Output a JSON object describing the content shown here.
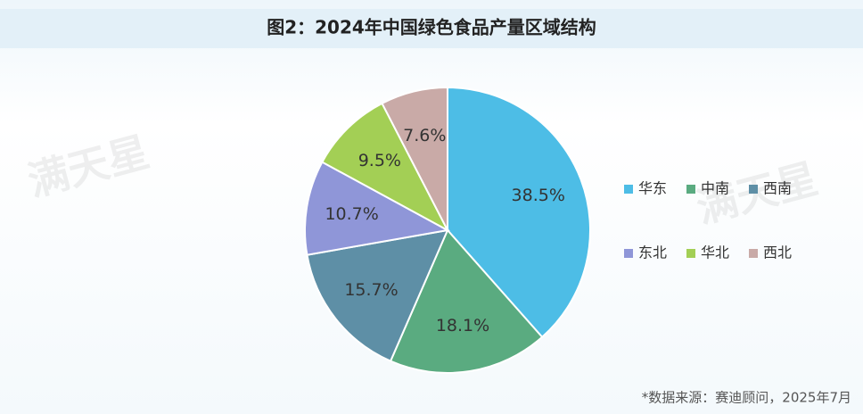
{
  "chart_data": {
    "type": "pie",
    "title": "图2：2024年中国绿色食品产量区域结构",
    "categories": [
      "华东",
      "中南",
      "西南",
      "东北",
      "华北",
      "西北"
    ],
    "values": [
      38.5,
      18.1,
      15.7,
      10.7,
      9.5,
      7.6
    ],
    "value_labels": [
      "38.5%",
      "18.1%",
      "15.7%",
      "10.7%",
      "9.5%",
      "7.6%"
    ],
    "colors": [
      "#4dbde6",
      "#5aab80",
      "#5e8fa6",
      "#8f96d8",
      "#a3cf55",
      "#c9aaa7"
    ],
    "legend": "right",
    "source": "*数据来源：赛迪顾问，2025年7月",
    "watermark": "满天星"
  }
}
